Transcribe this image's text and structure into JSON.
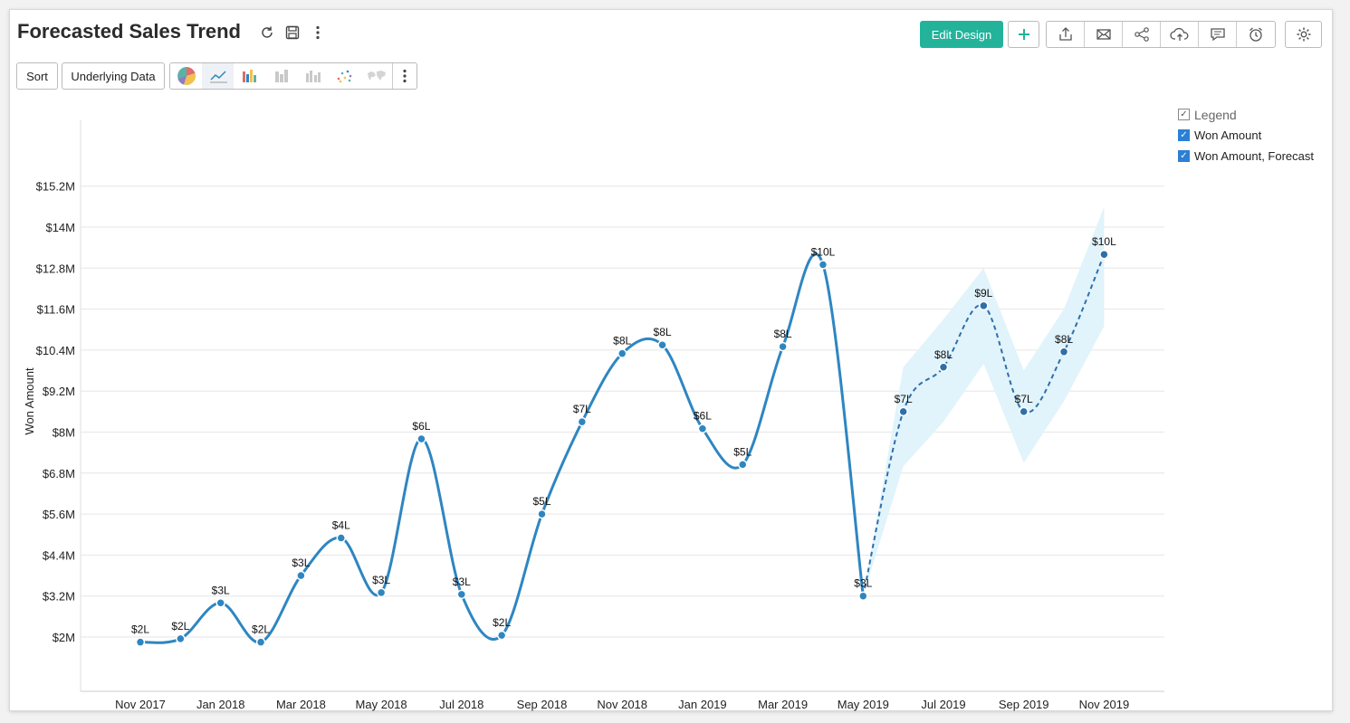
{
  "header": {
    "title": "Forecasted Sales Trend",
    "edit_label": "Edit Design",
    "icons": [
      "refresh-icon",
      "save-icon",
      "more-vertical-icon",
      "plus-icon",
      "export-icon",
      "email-icon",
      "share-icon",
      "cloud-upload-icon",
      "comment-icon",
      "alarm-icon",
      "gear-icon"
    ]
  },
  "toolbar": {
    "sort_label": "Sort",
    "underlying_label": "Underlying Data",
    "chart_types": [
      "pie-chart-icon",
      "line-chart-icon",
      "bar-chart-icon",
      "stacked-bar-icon",
      "grouped-bar-icon",
      "scatter-icon",
      "map-icon"
    ],
    "active_chart_type": "line-chart-icon"
  },
  "legend": {
    "title": "Legend",
    "items": [
      {
        "label": "Won Amount",
        "checked": true
      },
      {
        "label": "Won Amount, Forecast",
        "checked": true
      }
    ]
  },
  "colors": {
    "accent": "#23b39b",
    "line": "#2e86c1",
    "band": "#e1f3fb",
    "checkbox": "#2b80d3"
  },
  "chart_data": {
    "type": "line",
    "title": "Forecasted Sales Trend",
    "ylabel": "Won Amount",
    "xlabel": "",
    "ylim": [
      1,
      15.2
    ],
    "y_ticks": [
      "$15.2M",
      "$14M",
      "$12.8M",
      "$11.6M",
      "$10.4M",
      "$9.2M",
      "$8M",
      "$6.8M",
      "$5.6M",
      "$4.4M",
      "$3.2M",
      "$2M"
    ],
    "y_tick_values": [
      15.2,
      14,
      12.8,
      11.6,
      10.4,
      9.2,
      8,
      6.8,
      5.6,
      4.4,
      3.2,
      2
    ],
    "x_ticks": [
      "Nov 2017",
      "Jan 2018",
      "Mar 2018",
      "May 2018",
      "Jul 2018",
      "Sep 2018",
      "Nov 2018",
      "Jan 2019",
      "Mar 2019",
      "May 2019",
      "Jul 2019",
      "Sep 2019",
      "Nov 2019"
    ],
    "grid": true,
    "legend_position": "right",
    "series": [
      {
        "name": "Won Amount",
        "style": "solid",
        "x": [
          "Nov 2017",
          "Dec 2017",
          "Jan 2018",
          "Feb 2018",
          "Mar 2018",
          "Apr 2018",
          "May 2018",
          "Jun 2018",
          "Jul 2018",
          "Aug 2018",
          "Sep 2018",
          "Oct 2018",
          "Nov 2018",
          "Dec 2018",
          "Jan 2019",
          "Feb 2019",
          "Mar 2019",
          "Apr 2019",
          "May 2019"
        ],
        "values": [
          1.85,
          1.95,
          3.0,
          1.85,
          3.8,
          4.9,
          3.3,
          7.8,
          3.25,
          2.05,
          5.6,
          8.3,
          10.3,
          10.55,
          8.1,
          7.05,
          10.5,
          12.9,
          3.2
        ],
        "labels": [
          "$2L",
          "$2L",
          "$3L",
          "$2L",
          "$3L",
          "$4L",
          "$3L",
          "$6L",
          "$3L",
          "$2L",
          "$5L",
          "$7L",
          "$8L",
          "$8L",
          "$6L",
          "$5L",
          "$8L",
          "$10L",
          "$3L"
        ]
      },
      {
        "name": "Won Amount, Forecast",
        "style": "dashed",
        "x": [
          "May 2019",
          "Jun 2019",
          "Jul 2019",
          "Aug 2019",
          "Sep 2019",
          "Oct 2019",
          "Nov 2019"
        ],
        "values": [
          3.2,
          8.6,
          9.9,
          11.7,
          8.6,
          10.35,
          13.2
        ],
        "labels": [
          "",
          "$7L",
          "$8L",
          "$9L",
          "$7L",
          "$8L",
          "$10L"
        ],
        "upper": [
          3.2,
          9.9,
          11.3,
          12.8,
          9.8,
          11.6,
          14.6
        ],
        "lower": [
          3.2,
          7.0,
          8.3,
          10.0,
          7.1,
          8.9,
          11.1
        ]
      }
    ]
  }
}
